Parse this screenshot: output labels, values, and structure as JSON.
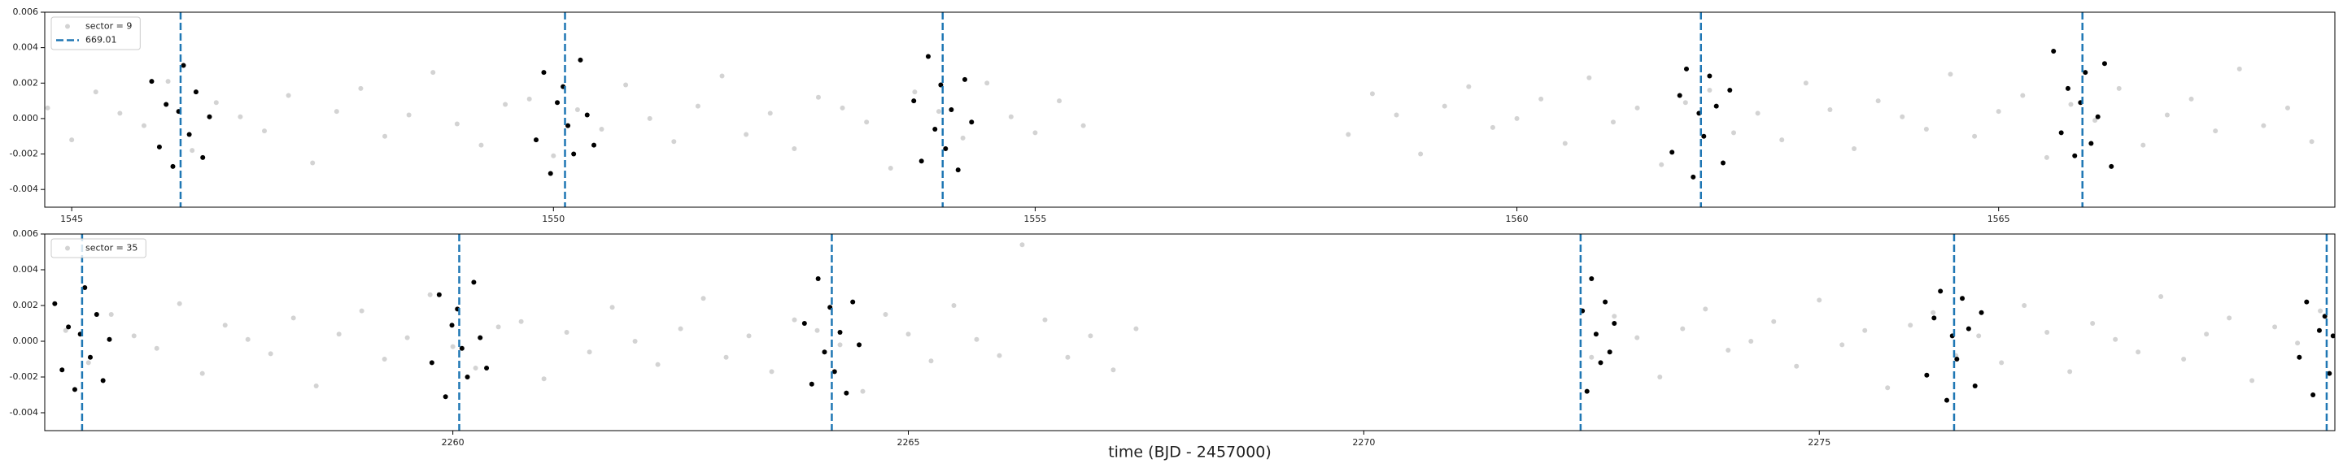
{
  "chart_data": [
    {
      "type": "scatter",
      "xlim": [
        1544.72,
        1568.49
      ],
      "ylim": [
        -0.005,
        0.006
      ],
      "xticks": [
        1545,
        1550,
        1555,
        1560,
        1565
      ],
      "yticks": [
        -0.004,
        -0.002,
        {
          "value": 0,
          "label": "0.000"
        },
        0.002,
        0.004,
        0.006
      ],
      "legend": "upper left",
      "series": [
        {
          "name": "sector = 9",
          "color": "#d3d3d3",
          "x": [
            1544.75,
            1545,
            1545.25,
            1545.5,
            1545.75,
            1546,
            1546.25,
            1546.5,
            1546.75,
            1547,
            1547.25,
            1547.5,
            1547.75,
            1548,
            1548.25,
            1548.5,
            1548.75,
            1549,
            1549.25,
            1549.5,
            1549.75,
            1550,
            1550.25,
            1550.5,
            1550.75,
            1551,
            1551.25,
            1551.5,
            1551.75,
            1552,
            1552.25,
            1552.5,
            1552.75,
            1553,
            1553.25,
            1553.5,
            1553.75,
            1554,
            1554.25,
            1554.5,
            1554.75,
            1555,
            1555.25,
            1555.5,
            1558.25,
            1558.5,
            1558.75,
            1559,
            1559.25,
            1559.5,
            1559.75,
            1560,
            1560.25,
            1560.5,
            1560.75,
            1561,
            1561.25,
            1561.5,
            1561.75,
            1562,
            1562.25,
            1562.5,
            1562.75,
            1563,
            1563.25,
            1563.5,
            1563.75,
            1564,
            1564.25,
            1564.5,
            1564.75,
            1565,
            1565.25,
            1565.5,
            1565.75,
            1566,
            1566.25,
            1566.5,
            1566.75,
            1567,
            1567.25,
            1567.5,
            1567.75,
            1568,
            1568.25
          ],
          "values": [
            0.0006,
            -0.0012,
            0.0015,
            0.0003,
            -0.0004,
            0.0021,
            -0.0018,
            0.0009,
            0.0001,
            -0.0007,
            0.0013,
            -0.0025,
            0.0004,
            0.0017,
            -0.001,
            0.0002,
            0.0026,
            -0.0003,
            -0.0015,
            0.0008,
            0.0011,
            -0.0021,
            0.0005,
            -0.0006,
            0.0019,
            0.0,
            -0.0013,
            0.0007,
            0.0024,
            -0.0009,
            0.0003,
            -0.0017,
            0.0012,
            0.0006,
            -0.0002,
            -0.0028,
            0.0015,
            0.0004,
            -0.0011,
            0.002,
            0.0001,
            -0.0008,
            0.001,
            -0.0004,
            -0.0009,
            0.0014,
            0.0002,
            -0.002,
            0.0007,
            0.0018,
            -0.0005,
            0.0,
            0.0011,
            -0.0014,
            0.0023,
            -0.0002,
            0.0006,
            -0.0026,
            0.0009,
            0.0016,
            -0.0008,
            0.0003,
            -0.0012,
            0.002,
            0.0005,
            -0.0017,
            0.001,
            0.0001,
            -0.0006,
            0.0025,
            -0.001,
            0.0004,
            0.0013,
            -0.0022,
            0.0008,
            -0.0001,
            0.0017,
            -0.0015,
            0.0002,
            0.0011,
            -0.0007,
            0.0028,
            -0.0004,
            0.0006,
            -0.0013
          ]
        },
        {
          "color": "#000000",
          "x": [
            1545.83,
            1545.91,
            1545.98,
            1546.05,
            1546.11,
            1546.16,
            1546.22,
            1546.29,
            1546.36,
            1546.43,
            1549.82,
            1549.9,
            1549.97,
            1550.04,
            1550.1,
            1550.15,
            1550.21,
            1550.28,
            1550.35,
            1550.42,
            1553.74,
            1553.82,
            1553.89,
            1553.96,
            1554.02,
            1554.07,
            1554.13,
            1554.2,
            1554.27,
            1554.34,
            1561.61,
            1561.69,
            1561.76,
            1561.83,
            1561.89,
            1561.94,
            1562.0,
            1562.07,
            1562.14,
            1562.21,
            1565.57,
            1565.65,
            1565.72,
            1565.79,
            1565.85,
            1565.9,
            1565.96,
            1566.03,
            1566.1,
            1566.17
          ],
          "values": [
            0.0021,
            -0.0016,
            0.0008,
            -0.0027,
            0.0004,
            0.003,
            -0.0009,
            0.0015,
            -0.0022,
            0.0001,
            -0.0012,
            0.0026,
            -0.0031,
            0.0009,
            0.0018,
            -0.0004,
            -0.002,
            0.0033,
            0.0002,
            -0.0015,
            0.001,
            -0.0024,
            0.0035,
            -0.0006,
            0.0019,
            -0.0017,
            0.0005,
            -0.0029,
            0.0022,
            -0.0002,
            -0.0019,
            0.0013,
            0.0028,
            -0.0033,
            0.0003,
            -0.001,
            0.0024,
            0.0007,
            -0.0025,
            0.0016,
            0.0038,
            -0.0008,
            0.0017,
            -0.0021,
            0.0009,
            0.0026,
            -0.0014,
            0.0001,
            0.0031,
            -0.0027
          ]
        }
      ],
      "vlines": {
        "name": "669.01",
        "color": "#1f77b4",
        "x": [
          1546.13,
          1550.12,
          1554.04,
          1561.91,
          1565.87
        ]
      }
    },
    {
      "type": "scatter",
      "xlabel": "time (BJD - 2457000)",
      "xlim": [
        2255.52,
        2280.66
      ],
      "ylim": [
        -0.005,
        0.006
      ],
      "xticks": [
        2260,
        2265,
        2270,
        2275
      ],
      "yticks": [
        -0.004,
        -0.002,
        {
          "value": 0,
          "label": "0.000"
        },
        0.002,
        0.004,
        0.006
      ],
      "legend": "upper left",
      "series": [
        {
          "name": "sector = 35",
          "color": "#d3d3d3",
          "x": [
            2255.75,
            2256,
            2256.25,
            2256.5,
            2256.75,
            2257,
            2257.25,
            2257.5,
            2257.75,
            2258,
            2258.25,
            2258.5,
            2258.75,
            2259,
            2259.25,
            2259.5,
            2259.75,
            2260,
            2260.25,
            2260.5,
            2260.75,
            2261,
            2261.25,
            2261.5,
            2261.75,
            2262,
            2262.25,
            2262.5,
            2262.75,
            2263,
            2263.25,
            2263.5,
            2263.75,
            2264,
            2264.25,
            2264.5,
            2264.75,
            2265,
            2265.25,
            2265.5,
            2265.75,
            2266,
            2266.25,
            2266.5,
            2266.75,
            2267,
            2267.25,
            2267.5,
            2272.5,
            2272.75,
            2273,
            2273.25,
            2273.5,
            2273.75,
            2274,
            2274.25,
            2274.5,
            2274.75,
            2275,
            2275.25,
            2275.5,
            2275.75,
            2276,
            2276.25,
            2276.5,
            2276.75,
            2277,
            2277.25,
            2277.5,
            2277.75,
            2278,
            2278.25,
            2278.5,
            2278.75,
            2279,
            2279.25,
            2279.5,
            2279.75,
            2280,
            2280.25,
            2280.5
          ],
          "values": [
            0.0006,
            -0.0012,
            0.0015,
            0.0003,
            -0.0004,
            0.0021,
            -0.0018,
            0.0009,
            0.0001,
            -0.0007,
            0.0013,
            -0.0025,
            0.0004,
            0.0017,
            -0.001,
            0.0002,
            0.0026,
            -0.0003,
            -0.0015,
            0.0008,
            0.0011,
            -0.0021,
            0.0005,
            -0.0006,
            0.0019,
            0.0,
            -0.0013,
            0.0007,
            0.0024,
            -0.0009,
            0.0003,
            -0.0017,
            0.0012,
            0.0006,
            -0.0002,
            -0.0028,
            0.0015,
            0.0004,
            -0.0011,
            0.002,
            0.0001,
            -0.0008,
            0.0054,
            0.0012,
            -0.0009,
            0.0003,
            -0.0016,
            0.0007,
            -0.0009,
            0.0014,
            0.0002,
            -0.002,
            0.0007,
            0.0018,
            -0.0005,
            0.0,
            0.0011,
            -0.0014,
            0.0023,
            -0.0002,
            0.0006,
            -0.0026,
            0.0009,
            0.0016,
            -0.0008,
            0.0003,
            -0.0012,
            0.002,
            0.0005,
            -0.0017,
            0.001,
            0.0001,
            -0.0006,
            0.0025,
            -0.001,
            0.0004,
            0.0013,
            -0.0022,
            0.0008,
            -0.0001,
            0.0017
          ]
        },
        {
          "color": "#000000",
          "x": [
            2255.63,
            2255.71,
            2255.78,
            2255.85,
            2255.91,
            2255.96,
            2256.02,
            2256.09,
            2256.16,
            2256.23,
            2259.77,
            2259.85,
            2259.92,
            2259.99,
            2260.05,
            2260.1,
            2260.16,
            2260.23,
            2260.3,
            2260.37,
            2263.86,
            2263.94,
            2264.01,
            2264.08,
            2264.14,
            2264.19,
            2264.25,
            2264.32,
            2264.39,
            2264.46,
            2272.4,
            2272.45,
            2272.5,
            2272.55,
            2272.6,
            2272.65,
            2272.7,
            2272.75,
            2276.18,
            2276.26,
            2276.33,
            2276.4,
            2276.46,
            2276.51,
            2276.57,
            2276.64,
            2276.71,
            2276.78,
            2280.27,
            2280.35,
            2280.42,
            2280.49,
            2280.55,
            2280.6,
            2280.64
          ],
          "values": [
            0.0021,
            -0.0016,
            0.0008,
            -0.0027,
            0.0004,
            0.003,
            -0.0009,
            0.0015,
            -0.0022,
            0.0001,
            -0.0012,
            0.0026,
            -0.0031,
            0.0009,
            0.0018,
            -0.0004,
            -0.002,
            0.0033,
            0.0002,
            -0.0015,
            0.001,
            -0.0024,
            0.0035,
            -0.0006,
            0.0019,
            -0.0017,
            0.0005,
            -0.0029,
            0.0022,
            -0.0002,
            0.0017,
            -0.0028,
            0.0035,
            0.0004,
            -0.0012,
            0.0022,
            -0.0006,
            0.001,
            -0.0019,
            0.0013,
            0.0028,
            -0.0033,
            0.0003,
            -0.001,
            0.0024,
            0.0007,
            -0.0025,
            0.0016,
            -0.0009,
            0.0022,
            -0.003,
            0.0006,
            0.0014,
            -0.0018,
            0.0003
          ]
        }
      ],
      "vlines": {
        "color": "#1f77b4",
        "x": [
          2255.93,
          2260.07,
          2264.16,
          2272.38,
          2276.48,
          2280.57
        ]
      }
    }
  ]
}
